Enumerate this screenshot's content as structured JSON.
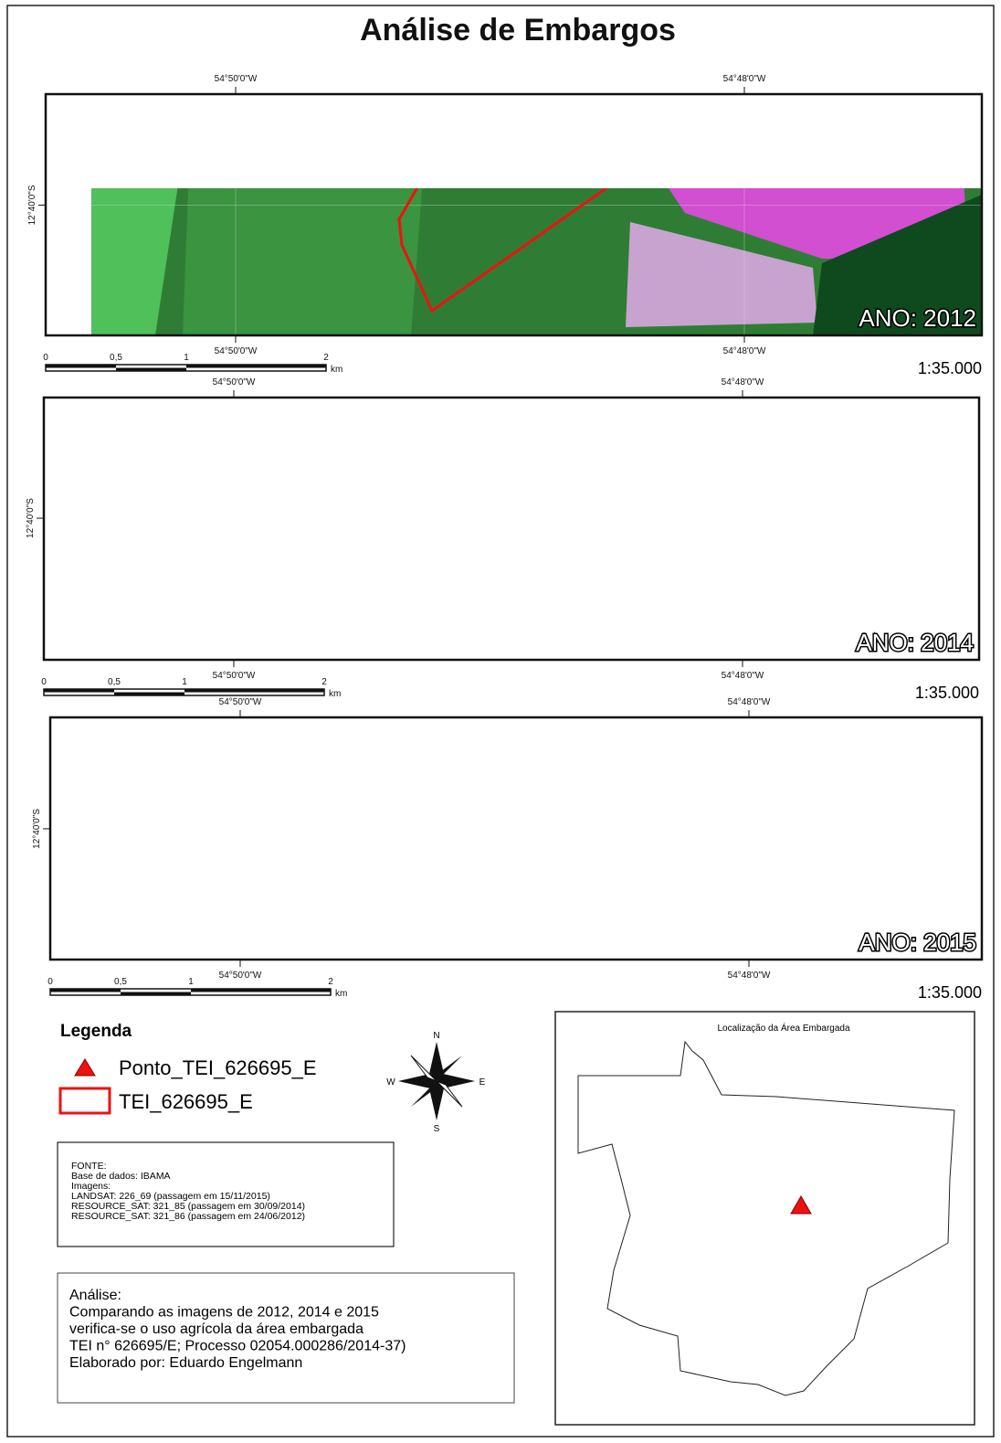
{
  "title": "Análise de Embargos",
  "panels": [
    {
      "top_lon_labels": [
        "54°50'0\"W",
        "54°48'0\"W"
      ],
      "bottom_lon_labels": [
        "54°50'0\"W",
        "54°48'0\"W"
      ],
      "lat_label": "12°40'0\"S",
      "year_label": "ANO: 2012",
      "scalebar_labels": [
        "0",
        "0,5",
        "1",
        "2"
      ],
      "scalebar_unit": "km",
      "scale": "1:35.000"
    },
    {
      "top_lon_labels": [
        "54°50'0\"W",
        "54°48'0\"W"
      ],
      "bottom_lon_labels": [
        "54°50'0\"W",
        "54°48'0\"W"
      ],
      "lat_label": "12°40'0\"S",
      "year_label": "ANO: 2014",
      "scalebar_labels": [
        "0",
        "0,5",
        "1",
        "2"
      ],
      "scalebar_unit": "km",
      "scale": "1:35.000"
    },
    {
      "top_lon_labels": [
        "54°50'0\"W",
        "54°48'0\"W"
      ],
      "bottom_lon_labels": [
        "54°50'0\"W",
        "54°48'0\"W"
      ],
      "lat_label": "12°40'0\"S",
      "year_label": "ANO: 2015",
      "scalebar_labels": [
        "0",
        "0,5",
        "1",
        "2"
      ],
      "scalebar_unit": "km",
      "scale": "1:35.000"
    }
  ],
  "legend": {
    "title": "Legenda",
    "items": [
      "Ponto_TEI_626695_E",
      "TEI_626695_E"
    ]
  },
  "compass": {
    "north": "N",
    "west": "W",
    "east": "E",
    "south": "S"
  },
  "source": {
    "lines": [
      "FONTE:",
      "Base de dados: IBAMA",
      "Imagens:",
      "LANDSAT: 226_69 (passagem em 15/11/2015)",
      "RESOURCE_SAT: 321_85 (passagem em 30/09/2014)",
      "RESOURCE_SAT: 321_86 (passagem em 24/06/2012)"
    ]
  },
  "analysis": {
    "lines": [
      "Análise:",
      "Comparando as imagens de 2012, 2014 e 2015",
      "verifica-se o uso agrícola da área embargada",
      "TEI n° 626695/E; Processo 02054.000286/2014-37)",
      "Elaborado por: Eduardo Engelmann"
    ]
  },
  "inset": {
    "title": "Localização da Área Embargada"
  }
}
